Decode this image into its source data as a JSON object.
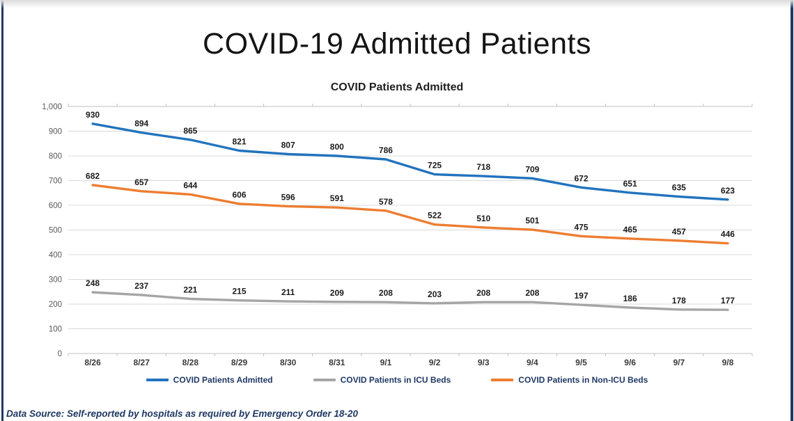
{
  "page": {
    "title": "COVID-19 Admitted Patients",
    "footer": "Data Source: Self-reported by hospitals as required by Emergency Order 18-20"
  },
  "chart_data": {
    "type": "line",
    "title": "COVID Patients Admitted",
    "categories": [
      "8/26",
      "8/27",
      "8/28",
      "8/29",
      "8/30",
      "8/31",
      "9/1",
      "9/2",
      "9/3",
      "9/4",
      "9/5",
      "9/6",
      "9/7",
      "9/8"
    ],
    "series": [
      {
        "name": "COVID Patients Admitted",
        "color": "#2273BE",
        "values": [
          930,
          894,
          865,
          821,
          807,
          800,
          786,
          725,
          718,
          709,
          672,
          651,
          635,
          623
        ]
      },
      {
        "name": "COVID Patients in ICU Beds",
        "color": "#A5A5A5",
        "values": [
          248,
          237,
          221,
          215,
          211,
          209,
          208,
          203,
          208,
          208,
          197,
          186,
          178,
          177
        ]
      },
      {
        "name": "COVID Patients in Non-ICU Beds",
        "color": "#ED7D31",
        "values": [
          682,
          657,
          644,
          606,
          596,
          591,
          578,
          522,
          510,
          501,
          475,
          465,
          457,
          446
        ]
      }
    ],
    "ylim": [
      0,
      1000
    ],
    "ytick_step": 100,
    "ytick_labels": [
      "0",
      "100",
      "200",
      "300",
      "400",
      "500",
      "600",
      "700",
      "800",
      "900",
      "1,000"
    ],
    "grid": true,
    "data_labels": true,
    "legend_position": "bottom",
    "colors": {
      "gridline": "#D9D9D9",
      "plot_boundary": "#BFBFBF",
      "tick": "#BFBFBF",
      "ytick_text": "#595959",
      "xtick_text": "#3a3a3a",
      "data_label_text": "#1a1a1a",
      "legend_text": "#1F3864",
      "frame": "#1F3864"
    }
  }
}
